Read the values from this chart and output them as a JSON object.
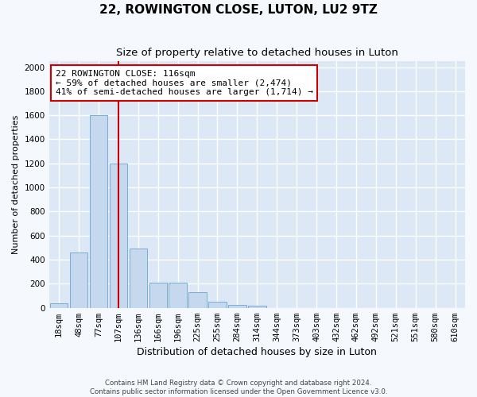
{
  "title": "22, ROWINGTON CLOSE, LUTON, LU2 9TZ",
  "subtitle": "Size of property relative to detached houses in Luton",
  "xlabel": "Distribution of detached houses by size in Luton",
  "ylabel": "Number of detached properties",
  "categories": [
    "18sqm",
    "48sqm",
    "77sqm",
    "107sqm",
    "136sqm",
    "166sqm",
    "196sqm",
    "225sqm",
    "255sqm",
    "284sqm",
    "314sqm",
    "344sqm",
    "373sqm",
    "403sqm",
    "432sqm",
    "462sqm",
    "492sqm",
    "521sqm",
    "551sqm",
    "580sqm",
    "610sqm"
  ],
  "values": [
    35,
    460,
    1600,
    1200,
    490,
    210,
    210,
    130,
    50,
    25,
    15,
    0,
    0,
    0,
    0,
    0,
    0,
    0,
    0,
    0,
    0
  ],
  "bar_color": "#c5d8ee",
  "bar_edge_color": "#7aadd4",
  "vline_color": "#cc0000",
  "vline_x": 3.0,
  "annotation_text": "22 ROWINGTON CLOSE: 116sqm\n← 59% of detached houses are smaller (2,474)\n41% of semi-detached houses are larger (1,714) →",
  "annotation_box_edge_color": "#cc0000",
  "ylim": [
    0,
    2050
  ],
  "yticks": [
    0,
    200,
    400,
    600,
    800,
    1000,
    1200,
    1400,
    1600,
    1800,
    2000
  ],
  "footnote": "Contains HM Land Registry data © Crown copyright and database right 2024.\nContains public sector information licensed under the Open Government Licence v3.0.",
  "plot_bg_color": "#dce8f5",
  "fig_bg_color": "#f5f8fd",
  "grid_color": "white",
  "title_fontsize": 11,
  "subtitle_fontsize": 9.5,
  "xlabel_fontsize": 9,
  "ylabel_fontsize": 8,
  "tick_fontsize": 7.5,
  "annotation_fontsize": 8
}
